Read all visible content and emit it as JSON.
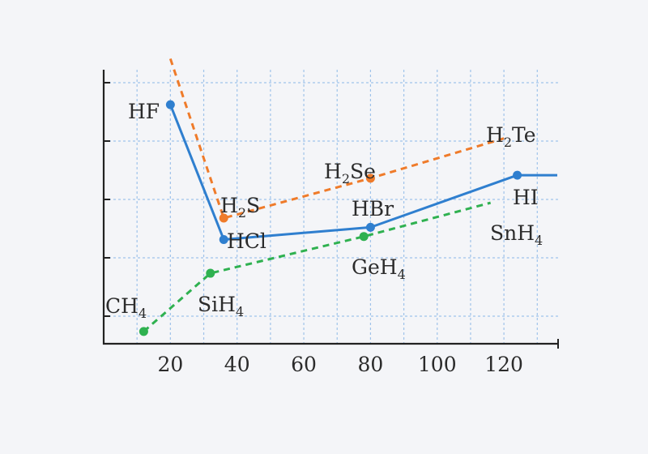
{
  "chart_data": {
    "type": "line",
    "xlim": [
      0,
      136
    ],
    "ylim": [
      0,
      100
    ],
    "x_ticks": [
      20,
      40,
      60,
      80,
      100,
      120
    ],
    "grid": true,
    "axes": {
      "show_y_tick_labels": false
    },
    "series": [
      {
        "color": "#2f7fcf",
        "dash": "solid",
        "points": [
          {
            "x": 20,
            "y": 78,
            "label": "HF",
            "label_base": "HF",
            "label_sub": ""
          },
          {
            "x": 36,
            "y": 34,
            "label": "HCl",
            "label_base": "HCl",
            "label_sub": ""
          },
          {
            "x": 80,
            "y": 38,
            "label": "HBr",
            "label_base": "HBr",
            "label_sub": ""
          },
          {
            "x": 124,
            "y": 55,
            "label": "HI",
            "label_base": "HI",
            "label_sub": ""
          }
        ],
        "extension_to_x": 136
      },
      {
        "color": "#ef7b2a",
        "dash": "dashed",
        "leading_segment_from": {
          "x": 20,
          "y": 93
        },
        "points": [
          {
            "x": 36,
            "y": 41,
            "label": "H2S",
            "label_base": "H",
            "label_sub": "2",
            "label_tail": "S"
          },
          {
            "x": 80,
            "y": 54,
            "label": "H2Se",
            "label_base": "H",
            "label_sub": "2",
            "label_tail": "Se"
          },
          {
            "x": 120,
            "y": 67,
            "label": "H2Te",
            "label_base": "H",
            "label_sub": "2",
            "label_tail": "Te",
            "marker": false
          }
        ]
      },
      {
        "color": "#2fb150",
        "dash": "dashed",
        "points": [
          {
            "x": 12,
            "y": 4,
            "label": "CH4",
            "label_base": "CH",
            "label_sub": "4"
          },
          {
            "x": 32,
            "y": 23,
            "label": "SiH4",
            "label_base": "SiH",
            "label_sub": "4"
          },
          {
            "x": 78,
            "y": 35,
            "label": "GeH4",
            "label_base": "GeH",
            "label_sub": "4"
          },
          {
            "x": 116,
            "y": 46,
            "label": "SnH4",
            "label_base": "SnH",
            "label_sub": "4",
            "marker": false
          }
        ]
      }
    ]
  }
}
